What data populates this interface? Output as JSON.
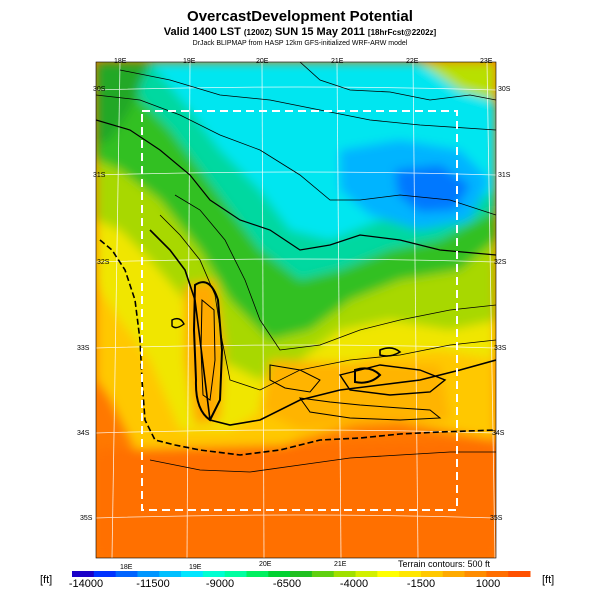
{
  "header": {
    "title": "OvercastDevelopment Potential",
    "subtitle_main": "Valid 1400 LST ",
    "subtitle_small1": "(1200Z)",
    "subtitle_mid": " SUN 15 May 2011 ",
    "subtitle_small2": "[18hrFcst@2202z]",
    "credit": "DrJack BLIPMAP from HASP 12km GFS-initialized WRF-ARW model"
  },
  "map": {
    "top_lon_labels": [
      "18E",
      "19E",
      "20E",
      "21E",
      "22E",
      "23E"
    ],
    "bottom_lon_labels": [
      "18E",
      "19E",
      "20E",
      "21E"
    ],
    "left_lat_labels": [
      "30S",
      "31S",
      "32S",
      "33S",
      "34S",
      "35S"
    ],
    "right_lat_labels": [
      "30S",
      "31S",
      "32S",
      "33S",
      "34S",
      "35S"
    ],
    "terrain_note": "Terrain contours: 500 ft"
  },
  "legend": {
    "unit_left": "[ft]",
    "unit_right": "[ft]",
    "tick_labels": [
      "-14000",
      "-11500",
      "-9000",
      "-6500",
      "-4000",
      "-1500",
      "1000"
    ],
    "colors": [
      "#1a00c8",
      "#0032ff",
      "#0064ff",
      "#0096ff",
      "#00c0ff",
      "#00e6ff",
      "#00ffd2",
      "#00ffa0",
      "#00f060",
      "#00d232",
      "#20c020",
      "#60d010",
      "#a0e000",
      "#d2f000",
      "#ffff00",
      "#ffe600",
      "#ffc800",
      "#ffaa00",
      "#ff8c00",
      "#ff6e00",
      "#ff5000"
    ]
  },
  "colors": {
    "blue": "#0078ff",
    "cyan": "#00e6f0",
    "green": "#20b820",
    "yellow": "#f0e600",
    "orange": "#ff8c00"
  }
}
